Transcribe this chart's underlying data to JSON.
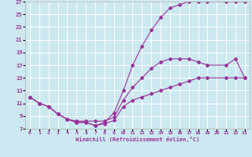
{
  "xlabel": "Windchill (Refroidissement éolien,°C)",
  "bg_color": "#cce8f0",
  "grid_color": "#ffffff",
  "line_color": "#993399",
  "xlim": [
    -0.5,
    23.5
  ],
  "ylim": [
    7,
    27
  ],
  "xticks": [
    0,
    1,
    2,
    3,
    4,
    5,
    6,
    7,
    8,
    9,
    10,
    11,
    12,
    13,
    14,
    15,
    16,
    17,
    18,
    19,
    20,
    21,
    22,
    23
  ],
  "yticks": [
    7,
    9,
    11,
    13,
    15,
    17,
    19,
    21,
    23,
    25,
    27
  ],
  "line1_x": [
    0,
    1,
    2,
    3,
    4,
    5,
    6,
    7,
    8,
    9,
    10,
    11,
    12,
    13,
    14,
    15,
    16,
    17,
    18,
    19,
    21,
    22,
    23
  ],
  "line1_y": [
    12.0,
    11.0,
    10.5,
    9.3,
    8.5,
    8.0,
    8.0,
    7.5,
    8.0,
    9.5,
    13.0,
    17.0,
    20.0,
    22.5,
    24.5,
    26.0,
    26.5,
    27.0,
    27.0,
    27.0,
    27.0,
    27.0,
    27.0
  ],
  "line2_x": [
    0,
    1,
    2,
    3,
    4,
    5,
    6,
    7,
    8,
    9,
    10,
    11,
    12,
    13,
    14,
    15,
    16,
    17,
    18,
    19,
    21,
    22,
    23
  ],
  "line2_y": [
    12.0,
    11.0,
    10.5,
    9.3,
    8.5,
    8.2,
    8.2,
    8.2,
    8.2,
    8.8,
    11.5,
    13.5,
    15.0,
    16.5,
    17.5,
    18.0,
    18.0,
    18.0,
    17.5,
    17.0,
    17.0,
    18.0,
    15.0
  ],
  "line3_x": [
    0,
    1,
    2,
    3,
    4,
    5,
    6,
    7,
    8,
    9,
    10,
    11,
    12,
    13,
    14,
    15,
    16,
    17,
    18,
    19,
    21,
    22,
    23
  ],
  "line3_y": [
    12.0,
    11.0,
    10.5,
    9.3,
    8.5,
    8.0,
    8.0,
    7.5,
    7.8,
    8.3,
    10.5,
    11.5,
    12.0,
    12.5,
    13.0,
    13.5,
    14.0,
    14.5,
    15.0,
    15.0,
    15.0,
    15.0,
    15.0
  ]
}
